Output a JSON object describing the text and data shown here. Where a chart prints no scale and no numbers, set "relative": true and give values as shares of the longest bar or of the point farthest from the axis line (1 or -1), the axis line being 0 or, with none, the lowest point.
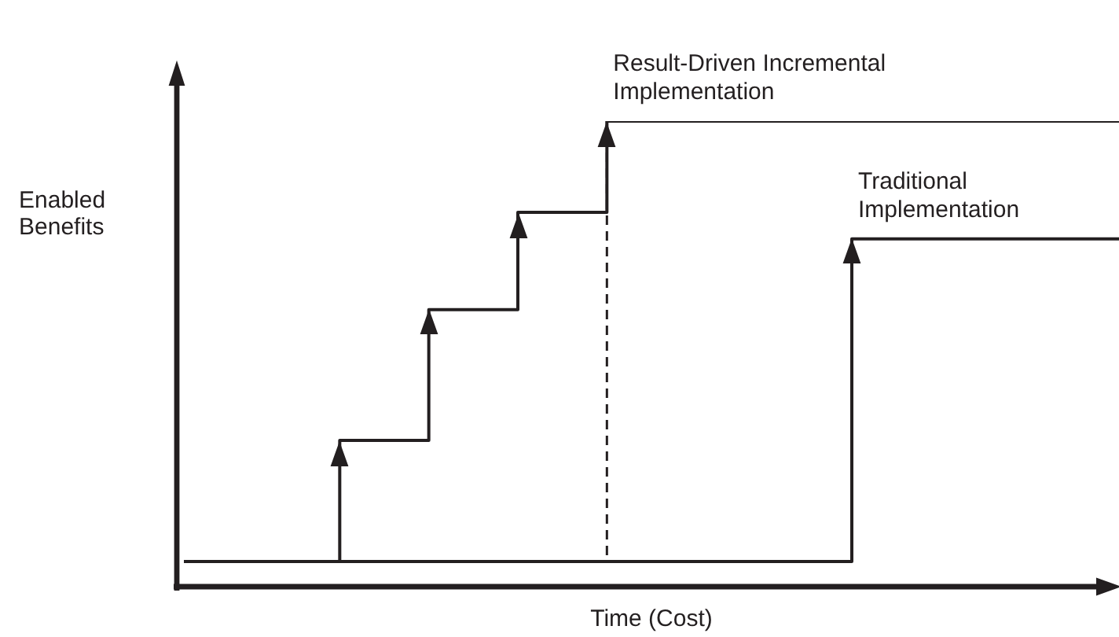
{
  "chart_data": {
    "type": "step",
    "relative": true,
    "xlabel": "Time (Cost)",
    "ylabel": "Enabled Benefits",
    "marker": "none",
    "line_style": "solid",
    "categories": [
      null,
      null,
      null,
      null,
      null,
      null,
      null,
      null,
      null,
      null,
      null,
      null,
      null,
      null,
      null,
      null,
      null,
      null,
      null,
      null,
      null,
      null,
      null,
      null,
      null,
      null,
      null,
      null,
      null,
      null,
      null,
      null,
      null,
      null,
      null,
      null,
      null,
      null,
      null,
      null,
      null,
      null,
      null
    ],
    "series": [
      {
        "name": "Traditional Implementation",
        "color": "#231f20",
        "values": [
          0.054,
          0.054,
          0.054,
          0.054,
          0.054,
          0.054,
          0.054,
          0.054,
          0.054,
          0.054,
          0.054,
          0.054,
          0.054,
          0.054,
          0.054,
          0.054,
          0.054,
          0.054,
          0.054,
          0.054,
          0.054,
          0.054,
          0.054,
          0.054,
          0.054,
          0.054,
          0.054,
          0.054,
          0.054,
          0.054,
          0.747,
          0.747,
          0.747,
          0.747,
          0.747,
          0.747,
          0.747,
          0.747,
          0.747,
          0.747,
          0.747,
          0.747,
          0.747
        ]
      },
      {
        "name": "Result-Driven Incremental Implementation",
        "color": "#231f20",
        "values": [
          0.054,
          0.054,
          0.054,
          0.054,
          0.054,
          0.054,
          0.054,
          0.314,
          0.314,
          0.314,
          0.314,
          0.595,
          0.595,
          0.595,
          0.595,
          0.804,
          0.804,
          0.804,
          0.804,
          1,
          1,
          1,
          1,
          1,
          1,
          1,
          1,
          1,
          1,
          1,
          1,
          1,
          1,
          1,
          1,
          1,
          1,
          1,
          1,
          1,
          1,
          1,
          1
        ]
      }
    ]
  }
}
